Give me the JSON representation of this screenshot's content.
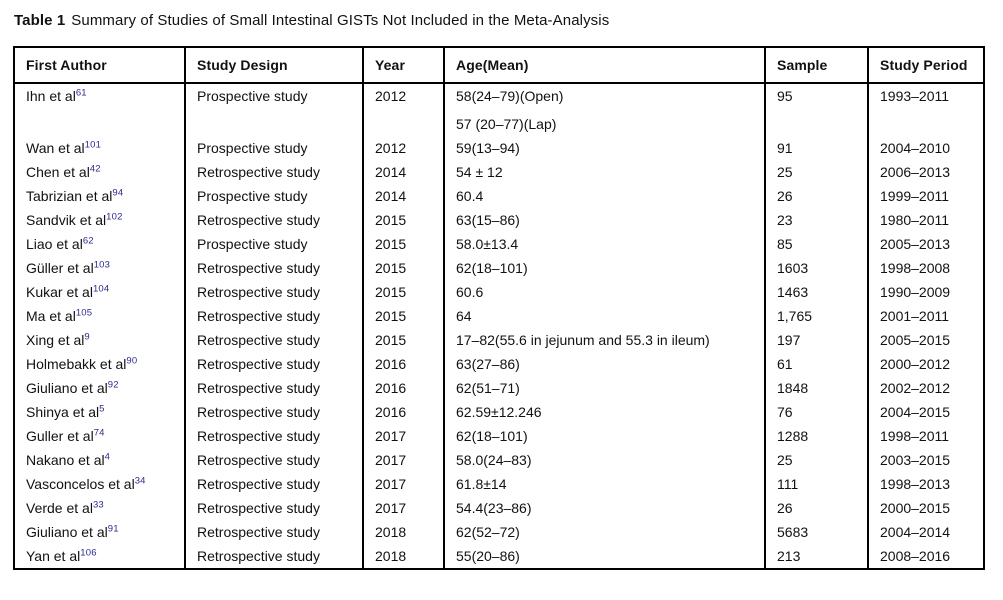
{
  "caption": {
    "label": "Table 1",
    "text": "Summary of Studies of Small Intestinal GISTs Not Included in the Meta-Analysis"
  },
  "colors": {
    "reference_superscript": "#2b2b8f",
    "text": "#111111",
    "border": "#000000",
    "background": "#ffffff"
  },
  "table": {
    "columns": [
      "First Author",
      "Study Design",
      "Year",
      "Age(Mean)",
      "Sample",
      "Study Period"
    ],
    "rows": [
      {
        "author": "Ihn et al",
        "ref": "61",
        "design": "Prospective study",
        "year": "2012",
        "age_lines": [
          "58(24–79)(Open)",
          "57 (20–77)(Lap)"
        ],
        "sample": "95",
        "period": "1993–2011"
      },
      {
        "author": "Wan et al",
        "ref": "101",
        "design": "Prospective study",
        "year": "2012",
        "age_lines": [
          "59(13–94)"
        ],
        "sample": "91",
        "period": "2004–2010"
      },
      {
        "author": "Chen et al",
        "ref": "42",
        "design": "Retrospective study",
        "year": "2014",
        "age_lines": [
          "54 ± 12"
        ],
        "sample": "25",
        "period": "2006–2013"
      },
      {
        "author": "Tabrizian et al",
        "ref": "94",
        "design": "Prospective study",
        "year": "2014",
        "age_lines": [
          "60.4"
        ],
        "sample": "26",
        "period": "1999–2011"
      },
      {
        "author": "Sandvik et al",
        "ref": "102",
        "design": "Retrospective study",
        "year": "2015",
        "age_lines": [
          "63(15–86)"
        ],
        "sample": "23",
        "period": "1980–2011"
      },
      {
        "author": "Liao et al",
        "ref": "62",
        "design": "Prospective study",
        "year": "2015",
        "age_lines": [
          "58.0±13.4"
        ],
        "sample": "85",
        "period": "2005–2013"
      },
      {
        "author": "Güller et al",
        "ref": "103",
        "design": "Retrospective study",
        "year": "2015",
        "age_lines": [
          "62(18–101)"
        ],
        "sample": "1603",
        "period": "1998–2008"
      },
      {
        "author": "Kukar et al",
        "ref": "104",
        "design": "Retrospective study",
        "year": "2015",
        "age_lines": [
          "60.6"
        ],
        "sample": "1463",
        "period": "1990–2009"
      },
      {
        "author": "Ma et al",
        "ref": "105",
        "design": "Retrospective study",
        "year": "2015",
        "age_lines": [
          "64"
        ],
        "sample": "1,765",
        "period": "2001–2011"
      },
      {
        "author": "Xing et al",
        "ref": "9",
        "design": "Retrospective study",
        "year": "2015",
        "age_lines": [
          "17–82(55.6 in jejunum and 55.3 in ileum)"
        ],
        "sample": "197",
        "period": "2005–2015"
      },
      {
        "author": "Holmebakk et al",
        "ref": "90",
        "design": "Retrospective study",
        "year": "2016",
        "age_lines": [
          "63(27–86)"
        ],
        "sample": "61",
        "period": "2000–2012"
      },
      {
        "author": "Giuliano et al",
        "ref": "92",
        "design": "Retrospective study",
        "year": "2016",
        "age_lines": [
          "62(51–71)"
        ],
        "sample": "1848",
        "period": "2002–2012"
      },
      {
        "author": "Shinya et al",
        "ref": "5",
        "design": "Retrospective study",
        "year": "2016",
        "age_lines": [
          "62.59±12.246"
        ],
        "sample": "76",
        "period": "2004–2015"
      },
      {
        "author": "Guller et al",
        "ref": "74",
        "design": "Retrospective study",
        "year": "2017",
        "age_lines": [
          "62(18–101)"
        ],
        "sample": "1288",
        "period": "1998–2011"
      },
      {
        "author": "Nakano et al",
        "ref": "4",
        "design": "Retrospective study",
        "year": "2017",
        "age_lines": [
          "58.0(24–83)"
        ],
        "sample": "25",
        "period": "2003–2015"
      },
      {
        "author": "Vasconcelos et al",
        "ref": "34",
        "design": "Retrospective study",
        "year": "2017",
        "age_lines": [
          "61.8±14"
        ],
        "sample": "111",
        "period": "1998–2013"
      },
      {
        "author": "Verde et al",
        "ref": "33",
        "design": "Retrospective study",
        "year": "2017",
        "age_lines": [
          "54.4(23–86)"
        ],
        "sample": "26",
        "period": "2000–2015"
      },
      {
        "author": "Giuliano et al",
        "ref": "91",
        "design": "Retrospective study",
        "year": "2018",
        "age_lines": [
          "62(52–72)"
        ],
        "sample": "5683",
        "period": "2004–2014"
      },
      {
        "author": "Yan et al",
        "ref": "106",
        "design": "Retrospective study",
        "year": "2018",
        "age_lines": [
          "55(20–86)"
        ],
        "sample": "213",
        "period": "2008–2016"
      }
    ]
  }
}
